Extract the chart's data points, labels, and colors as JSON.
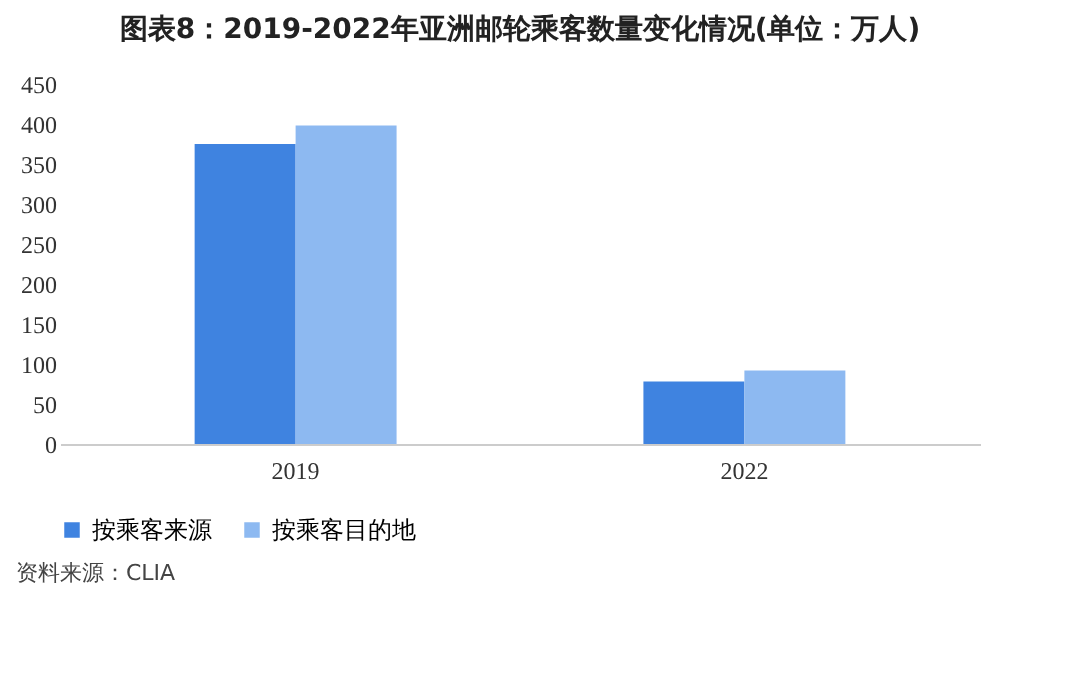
{
  "chart_data": {
    "type": "bar",
    "title": "图表8：2019-2022年亚洲邮轮乘客数量变化情况(单位：万人)",
    "categories": [
      "2019",
      "2022"
    ],
    "series": [
      {
        "name": "按乘客来源",
        "color": "#3f83e0",
        "values": [
          375,
          78
        ]
      },
      {
        "name": "按乘客目的地",
        "color": "#8db9f1",
        "values": [
          398,
          92
        ]
      }
    ],
    "ylim": [
      0,
      450
    ],
    "yticks": [
      0,
      50,
      100,
      150,
      200,
      250,
      300,
      350,
      400,
      450
    ],
    "grid": false,
    "legend": "bottom",
    "annotations": [
      "资料来源：CLIA"
    ]
  }
}
